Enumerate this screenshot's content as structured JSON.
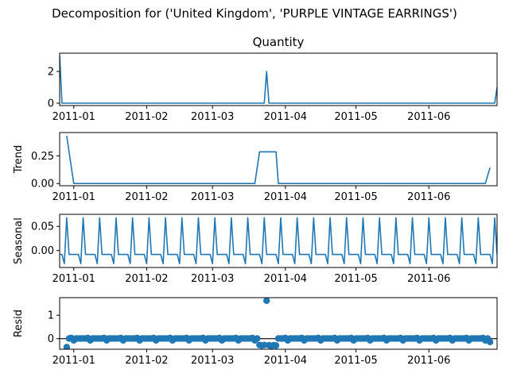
{
  "figure": {
    "suptitle": "Decomposition for ('United Kingdom', 'PURPLE VINTAGE EARRINGS')"
  },
  "colors": {
    "line": "#1f77b4",
    "axis": "#000000",
    "zero_line": "#000000"
  },
  "chart_data": [
    {
      "type": "line",
      "panel": "observed",
      "title": "Quantity",
      "ylabel": "",
      "xlim": [
        "2010-12-26",
        "2011-06-30"
      ],
      "ylim": [
        -0.15,
        3.15
      ],
      "yticks": [
        0,
        2
      ],
      "ytick_labels": [
        "0",
        "2"
      ],
      "xticks": [
        "2011-01-01",
        "2011-02-01",
        "2011-03-01",
        "2011-04-01",
        "2011-05-01",
        "2011-06-01"
      ],
      "xtick_labels": [
        "2011-01",
        "2011-02",
        "2011-03",
        "2011-04",
        "2011-05",
        "2011-06"
      ],
      "series": [
        {
          "points": [
            [
              "2010-12-26",
              3
            ],
            [
              "2010-12-27",
              0
            ],
            [
              "2011-03-23",
              0
            ],
            [
              "2011-03-24",
              2
            ],
            [
              "2011-03-25",
              0
            ],
            [
              "2011-06-29",
              0
            ],
            [
              "2011-06-30",
              1
            ]
          ]
        }
      ]
    },
    {
      "type": "line",
      "panel": "trend",
      "title": "",
      "ylabel": "Trend",
      "xlim": [
        "2010-12-26",
        "2011-06-30"
      ],
      "ylim": [
        -0.02,
        0.46
      ],
      "yticks": [
        0,
        0.25
      ],
      "ytick_labels": [
        "0.00",
        "0.25"
      ],
      "xticks": [
        "2011-01-01",
        "2011-02-01",
        "2011-03-01",
        "2011-04-01",
        "2011-05-01",
        "2011-06-01"
      ],
      "xtick_labels": [
        "2011-01",
        "2011-02",
        "2011-03",
        "2011-04",
        "2011-05",
        "2011-06"
      ],
      "series": [
        {
          "points": [
            [
              "2010-12-29",
              0.43
            ],
            [
              "2011-01-01",
              0
            ],
            [
              "2011-03-19",
              0
            ],
            [
              "2011-03-21",
              0.286
            ],
            [
              "2011-03-28",
              0.286
            ],
            [
              "2011-03-29",
              0
            ],
            [
              "2011-06-25",
              0
            ],
            [
              "2011-06-27",
              0.143
            ]
          ]
        }
      ]
    },
    {
      "type": "line",
      "panel": "seasonal",
      "title": "",
      "ylabel": "Seasonal",
      "xlim": [
        "2010-12-26",
        "2011-06-30"
      ],
      "ylim": [
        -0.035,
        0.075
      ],
      "yticks": [
        0,
        0.05
      ],
      "ytick_labels": [
        "0.00",
        "0.05"
      ],
      "xticks": [
        "2011-01-01",
        "2011-02-01",
        "2011-03-01",
        "2011-04-01",
        "2011-05-01",
        "2011-06-01"
      ],
      "xtick_labels": [
        "2011-01",
        "2011-02",
        "2011-03",
        "2011-04",
        "2011-05",
        "2011-06"
      ],
      "period": 7,
      "weekly_pattern": [
        -0.008,
        -0.008,
        -0.027,
        0.068,
        -0.008,
        -0.008,
        -0.008
      ],
      "series": [
        {
          "start": "2010-12-26",
          "end": "2011-06-30"
        }
      ]
    },
    {
      "type": "scatter",
      "panel": "resid",
      "title": "",
      "ylabel": "Resid",
      "xlim": [
        "2010-12-26",
        "2011-06-30"
      ],
      "ylim": [
        -0.45,
        1.75
      ],
      "yticks": [
        0,
        1
      ],
      "ytick_labels": [
        "0",
        "1"
      ],
      "xticks": [
        "2011-01-01",
        "2011-02-01",
        "2011-03-01",
        "2011-04-01",
        "2011-05-01",
        "2011-06-01"
      ],
      "xtick_labels": [
        "2011-01",
        "2011-02",
        "2011-03",
        "2011-04",
        "2011-05",
        "2011-06"
      ],
      "zero_line": true,
      "weekly_pattern": [
        0.01,
        0.01,
        0.03,
        -0.07,
        0.01,
        0.01,
        0.01
      ],
      "special_points": [
        [
          "2010-12-29",
          -0.36
        ],
        [
          "2011-03-21",
          -0.27
        ],
        [
          "2011-03-22",
          -0.29
        ],
        [
          "2011-03-23",
          -0.27
        ],
        [
          "2011-03-24",
          1.62
        ],
        [
          "2011-03-25",
          -0.28
        ],
        [
          "2011-03-26",
          -0.31
        ],
        [
          "2011-03-27",
          -0.28
        ],
        [
          "2011-03-28",
          -0.29
        ],
        [
          "2011-06-27",
          -0.14
        ]
      ],
      "series": [
        {
          "start": "2010-12-29",
          "end": "2011-06-27"
        }
      ]
    }
  ]
}
